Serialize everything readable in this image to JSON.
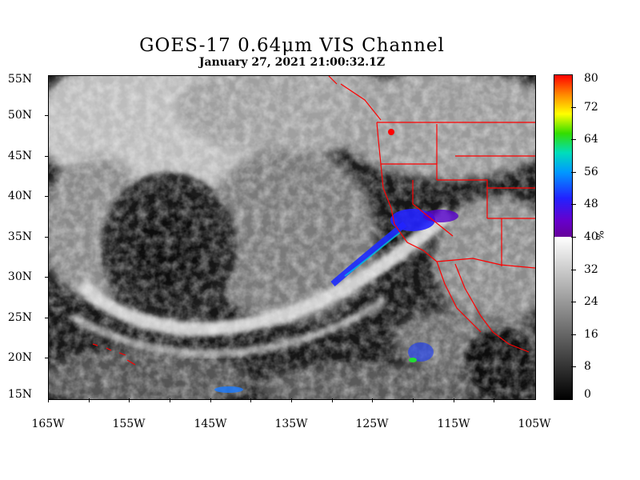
{
  "title": "GOES-17  0.64μm VIS Channel",
  "timestamp": "January 27,  2021 21:00:32.1Z",
  "map": {
    "lat_labels": [
      "55N",
      "50N",
      "45N",
      "40N",
      "35N",
      "30N",
      "25N",
      "20N",
      "15N"
    ],
    "lon_labels": [
      "165W",
      "155W",
      "145W",
      "135W",
      "125W",
      "115W",
      "105W"
    ],
    "extent": {
      "lon_min": -165,
      "lon_max": -105,
      "lat_min": 15,
      "lat_max": 55
    },
    "boundary_color": "#ff0000"
  },
  "colorbar": {
    "labels": [
      "80",
      "72",
      "64",
      "56",
      "48",
      "40",
      "32",
      "24",
      "16",
      "8",
      "0"
    ],
    "unit": "%",
    "range": [
      0,
      80
    ],
    "color_threshold": 40
  }
}
